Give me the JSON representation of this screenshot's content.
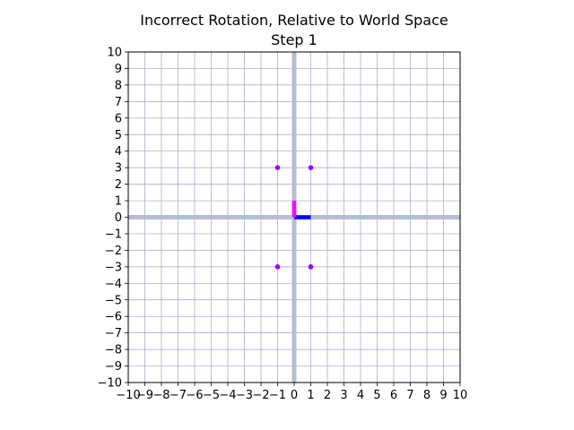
{
  "chart_data": {
    "type": "scatter",
    "title_lines": [
      "Incorrect Rotation, Relative to World Space",
      "Step 1"
    ],
    "xlim": [
      -10,
      10
    ],
    "ylim": [
      -10,
      10
    ],
    "x_ticks": [
      "−10",
      "−9",
      "−8",
      "−7",
      "−6",
      "−5",
      "−4",
      "−3",
      "−2",
      "−1",
      "0",
      "1",
      "2",
      "3",
      "4",
      "5",
      "6",
      "7",
      "8",
      "9",
      "10"
    ],
    "y_ticks": [
      "10",
      "9",
      "8",
      "7",
      "6",
      "5",
      "4",
      "3",
      "2",
      "1",
      "0",
      "−1",
      "−2",
      "−3",
      "−4",
      "−5",
      "−6",
      "−7",
      "−8",
      "−9",
      "−10"
    ],
    "grid": true,
    "points": [
      {
        "x": -1,
        "y": 3
      },
      {
        "x": 1,
        "y": 3
      },
      {
        "x": -1,
        "y": -3
      },
      {
        "x": 1,
        "y": -3
      }
    ],
    "local_axes": [
      {
        "label_name": "local-x-axis",
        "from": [
          0,
          0
        ],
        "to": [
          1,
          0
        ],
        "color": "#0000ff"
      },
      {
        "label_name": "local-y-axis",
        "from": [
          0,
          0
        ],
        "to": [
          0,
          1
        ],
        "color": "#ff00ff"
      }
    ],
    "colors": {
      "points": "#9900ff",
      "grid": "#9aa3c8",
      "world_axes": "#b4bdd6"
    }
  }
}
